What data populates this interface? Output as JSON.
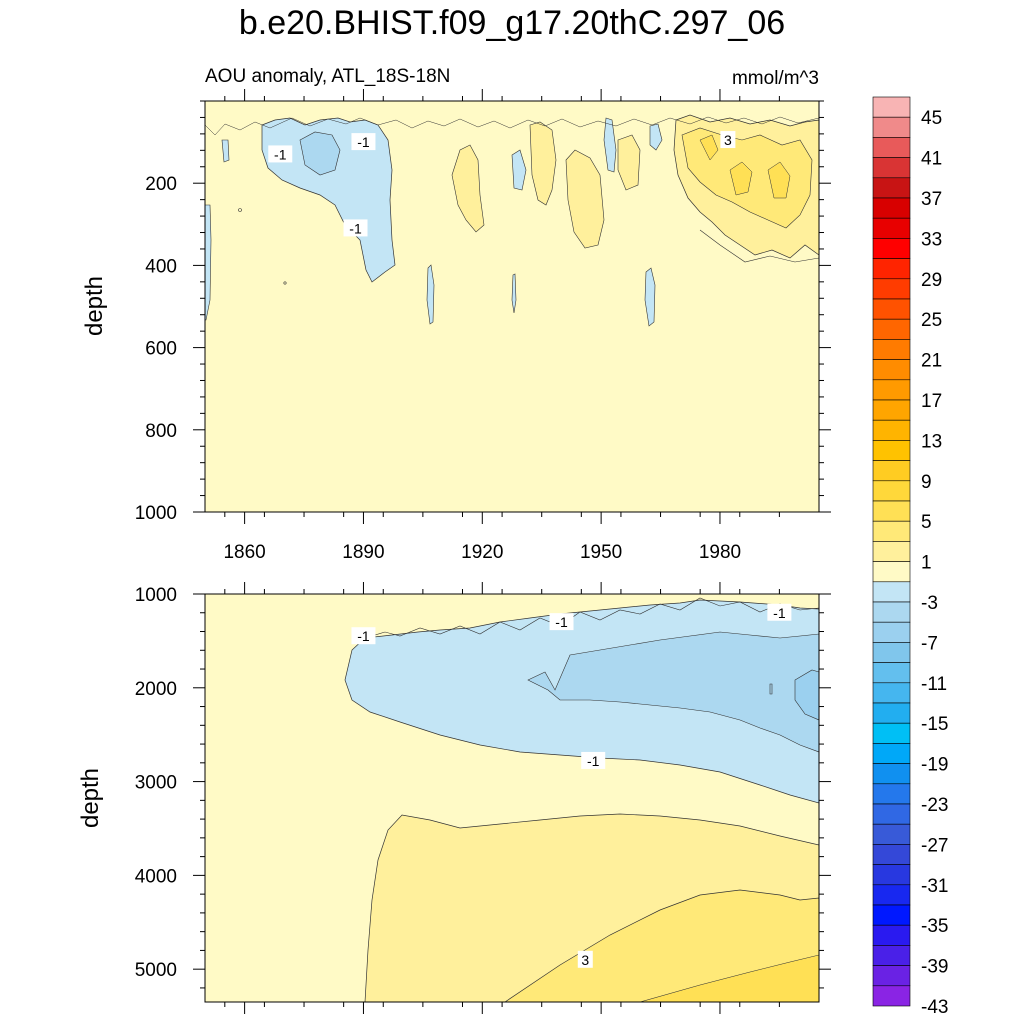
{
  "title": "b.e20.BHIST.f09_g17.20thC.297_06",
  "chart_data": [
    {
      "type": "heatmap",
      "subtitle": "AOU anomaly, ATL_18S-18N",
      "units": "mmol/m^3",
      "ylabel": "depth",
      "xlim": [
        1850,
        2005
      ],
      "ylim": [
        1000,
        0
      ],
      "xticks": [
        1860,
        1890,
        1920,
        1950,
        1980
      ],
      "xtick_labels": [
        "1860",
        "1890",
        "1920",
        "1950",
        "1980"
      ],
      "yticks": [
        200,
        400,
        600,
        800,
        1000
      ],
      "ytick_labels": [
        "200",
        "400",
        "600",
        "800",
        "1000"
      ],
      "contour_labels": [
        {
          "text": "-1",
          "x": 1869,
          "depth": 130
        },
        {
          "text": "-1",
          "x": 1890,
          "depth": 100
        },
        {
          "text": "-1",
          "x": 1888,
          "depth": 310
        },
        {
          "text": "3",
          "x": 1982,
          "depth": 95
        }
      ]
    },
    {
      "type": "heatmap",
      "ylabel": "depth",
      "xlim": [
        1850,
        2005
      ],
      "ylim": [
        5350,
        1000
      ],
      "yticks": [
        1000,
        2000,
        3000,
        4000,
        5000
      ],
      "ytick_labels": [
        "1000",
        "2000",
        "3000",
        "4000",
        "5000"
      ],
      "contour_labels": [
        {
          "text": "-1",
          "x": 1890,
          "depth": 1450
        },
        {
          "text": "-1",
          "x": 1940,
          "depth": 1300
        },
        {
          "text": "-1",
          "x": 1995,
          "depth": 1200
        },
        {
          "text": "-1",
          "x": 1948,
          "depth": 2780
        },
        {
          "text": "3",
          "x": 1946,
          "depth": 4900
        }
      ]
    }
  ],
  "colorbar": {
    "labels": [
      "45",
      "41",
      "37",
      "33",
      "29",
      "25",
      "21",
      "17",
      "13",
      "9",
      "5",
      "1",
      "-3",
      "-7",
      "-11",
      "-15",
      "-19",
      "-23",
      "-27",
      "-31",
      "-35",
      "-39",
      "-43"
    ],
    "colors": [
      "#f8b4b4",
      "#f08a8a",
      "#e85a5a",
      "#d93434",
      "#c81414",
      "#d80000",
      "#e80000",
      "#ff0000",
      "#ff2400",
      "#ff3c00",
      "#ff5200",
      "#ff6600",
      "#ff7b00",
      "#ff8c00",
      "#ff9a00",
      "#ffa500",
      "#ffb400",
      "#ffc200",
      "#ffcc22",
      "#ffd83a",
      "#ffe055",
      "#ffe978",
      "#fff09c",
      "#fffac6",
      "#c3e5f5",
      "#acd8f0",
      "#9bd0ef",
      "#80c6ec",
      "#63bfee",
      "#45b6ef",
      "#22aef0",
      "#00bff5",
      "#00a8f8",
      "#1090f0",
      "#2478ec",
      "#3068e4",
      "#385ad8",
      "#3448d8",
      "#2838e0",
      "#1828f0",
      "#0018ff",
      "#2a1af0",
      "#4a20e8",
      "#6a22e4",
      "#8a24e4"
    ]
  }
}
